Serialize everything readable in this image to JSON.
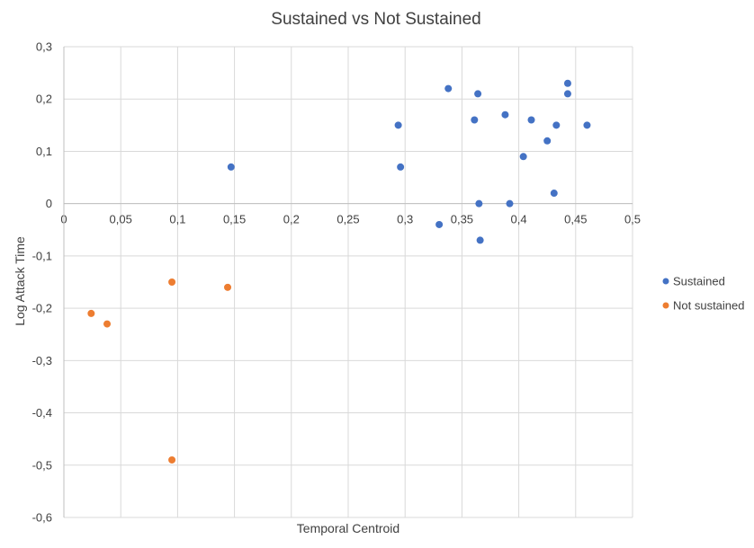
{
  "chart_data": {
    "type": "scatter",
    "title": "Sustained vs Not Sustained",
    "xlabel": "Temporal Centroid",
    "ylabel": "Log Attack Time",
    "xlim": [
      0,
      0.5
    ],
    "ylim": [
      -0.6,
      0.3
    ],
    "x_ticks": [
      "0",
      "0,05",
      "0,1",
      "0,15",
      "0,2",
      "0,25",
      "0,3",
      "0,35",
      "0,4",
      "0,45",
      "0,5"
    ],
    "x_tick_values": [
      0,
      0.05,
      0.1,
      0.15,
      0.2,
      0.25,
      0.3,
      0.35,
      0.4,
      0.45,
      0.5
    ],
    "y_ticks": [
      "0,3",
      "0,2",
      "0,1",
      "0",
      "-0,1",
      "-0,2",
      "-0,3",
      "-0,4",
      "-0,5",
      "-0,6"
    ],
    "y_tick_values": [
      0.3,
      0.2,
      0.1,
      0,
      -0.1,
      -0.2,
      -0.3,
      -0.4,
      -0.5,
      -0.6
    ],
    "grid": true,
    "legend_position": "right",
    "series": [
      {
        "name": "Sustained",
        "color": "#4472C4",
        "points": [
          [
            0.147,
            0.07
          ],
          [
            0.294,
            0.15
          ],
          [
            0.296,
            0.07
          ],
          [
            0.338,
            0.22
          ],
          [
            0.364,
            0.21
          ],
          [
            0.361,
            0.16
          ],
          [
            0.388,
            0.17
          ],
          [
            0.411,
            0.16
          ],
          [
            0.443,
            0.23
          ],
          [
            0.443,
            0.21
          ],
          [
            0.433,
            0.15
          ],
          [
            0.46,
            0.15
          ],
          [
            0.425,
            0.12
          ],
          [
            0.404,
            0.09
          ],
          [
            0.431,
            0.02
          ],
          [
            0.365,
            0.0
          ],
          [
            0.392,
            0.0
          ],
          [
            0.33,
            -0.04
          ],
          [
            0.366,
            -0.07
          ]
        ]
      },
      {
        "name": "Not sustained",
        "color": "#ED7D31",
        "points": [
          [
            0.095,
            -0.15
          ],
          [
            0.144,
            -0.16
          ],
          [
            0.024,
            -0.21
          ],
          [
            0.038,
            -0.23
          ],
          [
            0.095,
            -0.49
          ]
        ]
      }
    ]
  }
}
